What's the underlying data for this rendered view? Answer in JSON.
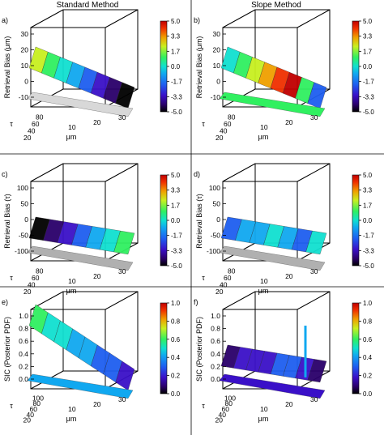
{
  "columns": {
    "left": "Standard Method",
    "right": "Slope Method"
  },
  "colorbar_colors": [
    "#000000",
    "#2a006a",
    "#3a10c8",
    "#1e5ef0",
    "#10a8f0",
    "#10e0d0",
    "#30f060",
    "#c8f020",
    "#f0a000",
    "#f03000",
    "#c00000"
  ],
  "chart_data": [
    {
      "id": "a",
      "type": "surface3d",
      "panel_label": "a)",
      "zlabel": "Retrieval Bias (μm)",
      "zticks": [
        "-10",
        "0",
        "10",
        "20",
        "30"
      ],
      "yticks": [
        "80",
        "60",
        "40",
        "20"
      ],
      "ylabel": "τ",
      "xticks": [
        "10",
        "20",
        "30"
      ],
      "xlabel": "μm",
      "colorbar_ticks": [
        "5.0",
        "3.3",
        "1.7",
        "0.0",
        "-1.7",
        "-3.3",
        "-5.0"
      ],
      "clim": [
        -5.0,
        5.0
      ]
    },
    {
      "id": "b",
      "type": "surface3d",
      "panel_label": "b)",
      "zlabel": "Retrieval Bias (μm)",
      "zticks": [
        "-10",
        "0",
        "10",
        "20",
        "30"
      ],
      "yticks": [
        "80",
        "60",
        "40",
        "20"
      ],
      "ylabel": "τ",
      "xticks": [
        "10",
        "20",
        "30"
      ],
      "xlabel": "μm",
      "colorbar_ticks": [
        "5.0",
        "3.3",
        "1.7",
        "0.0",
        "-1.7",
        "-3.3",
        "-5.0"
      ],
      "clim": [
        -5.0,
        5.0
      ]
    },
    {
      "id": "c",
      "type": "surface3d",
      "panel_label": "c)",
      "zlabel": "Retrieval Bias (τ)",
      "zticks": [
        "-100",
        "-50",
        "0",
        "50",
        "100"
      ],
      "yticks": [
        "80",
        "60",
        "40",
        "20"
      ],
      "ylabel": "τ",
      "xticks": [
        "10",
        "20",
        "30"
      ],
      "xlabel": "μm",
      "colorbar_ticks": [
        "5.0",
        "3.3",
        "1.7",
        "0.0",
        "-1.7",
        "-3.3",
        "-5.0"
      ],
      "clim": [
        -5.0,
        5.0
      ]
    },
    {
      "id": "d",
      "type": "surface3d",
      "panel_label": "d)",
      "zlabel": "Retrieval Bias (τ)",
      "zticks": [
        "-100",
        "-50",
        "0",
        "50",
        "100"
      ],
      "yticks": [
        "80",
        "60",
        "40",
        "20"
      ],
      "ylabel": "τ",
      "xticks": [
        "10",
        "20",
        "30"
      ],
      "xlabel": "μm",
      "colorbar_ticks": [
        "5.0",
        "3.3",
        "1.7",
        "0.0",
        "-1.7",
        "-3.3",
        "-5.0"
      ],
      "clim": [
        -5.0,
        5.0
      ]
    },
    {
      "id": "e",
      "type": "surface3d",
      "panel_label": "e)",
      "zlabel": "SIC (Posterior PDF)",
      "zticks": [
        "0.0",
        "0.2",
        "0.4",
        "0.6",
        "0.8",
        "1.0"
      ],
      "yticks": [
        "100",
        "80",
        "60",
        "40",
        "20"
      ],
      "ylabel": "τ",
      "xticks": [
        "10",
        "20",
        "30"
      ],
      "xlabel": "μm",
      "colorbar_ticks": [
        "1.0",
        "0.8",
        "0.6",
        "0.4",
        "0.2",
        "0.0"
      ],
      "clim": [
        0.0,
        1.0
      ]
    },
    {
      "id": "f",
      "type": "surface3d",
      "panel_label": "f)",
      "zlabel": "SIC (Posterior PDF)",
      "zticks": [
        "0.0",
        "0.2",
        "0.4",
        "0.6",
        "0.8",
        "1.0"
      ],
      "yticks": [
        "100",
        "80",
        "60",
        "40",
        "20"
      ],
      "ylabel": "τ",
      "xticks": [
        "10",
        "20",
        "30"
      ],
      "xlabel": "μm",
      "colorbar_ticks": [
        "1.0",
        "0.8",
        "0.6",
        "0.4",
        "0.2",
        "0.0"
      ],
      "clim": [
        0.0,
        1.0
      ]
    }
  ]
}
